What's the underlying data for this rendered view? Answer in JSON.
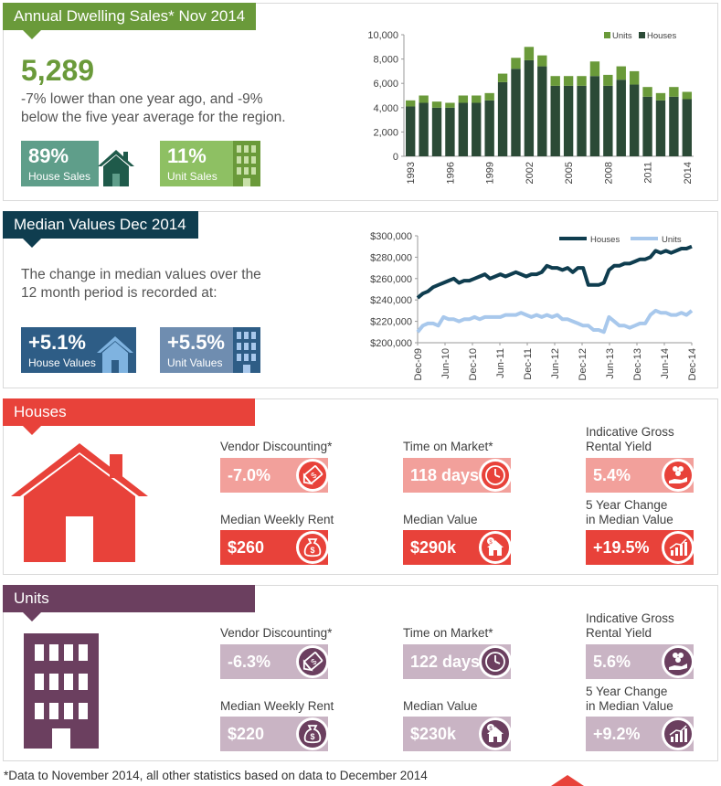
{
  "colors": {
    "green": "#6a9a3a",
    "navy": "#0f3d4f",
    "red": "#e8423a",
    "pink": "#f2a09b",
    "purple": "#6b3f5f",
    "lilac": "#c9b4c4",
    "houses_dark": "#2b4a36",
    "units_green": "#6a9a3a",
    "line_houses": "#0f3d4f",
    "line_units": "#a8c8ec"
  },
  "sales": {
    "title": "Annual Dwelling Sales* Nov 2014",
    "value": "5,289",
    "desc_line1": "-7% lower than one year ago, and -9%",
    "desc_line2": "below the five year average for the region.",
    "house_pct": "89%",
    "house_label": "House Sales",
    "unit_pct": "11%",
    "unit_label": "Unit Sales",
    "house_icon": "house-icon",
    "unit_icon": "building-icon"
  },
  "median": {
    "title": "Median Values Dec 2014",
    "desc_line1": "The change in median values over the",
    "desc_line2": "12 month period is  recorded at:",
    "house_pct": "+5.1%",
    "house_label": "House Values",
    "unit_pct": "+5.5%",
    "unit_label": "Unit Values"
  },
  "houses": {
    "title": "Houses",
    "vendor_label": "Vendor Discounting*",
    "vendor_value": "-7.0%",
    "vendor_icon": "price-tag-icon",
    "time_label": "Time on Market*",
    "time_value": "118 days",
    "time_icon": "clock-icon",
    "yield_label_1": "Indicative Gross",
    "yield_label_2": "Rental Yield",
    "yield_value": "5.4%",
    "yield_icon": "hand-coins-icon",
    "rent_label": "Median Weekly Rent",
    "rent_value": "$260",
    "rent_icon": "money-bag-icon",
    "median_label": "Median Value",
    "median_value": "$290k",
    "median_icon": "house-dollar-icon",
    "change_label_1": "5 Year Change",
    "change_label_2": "in Median Value",
    "change_value": "+19.5%",
    "change_icon": "bar-growth-icon"
  },
  "units": {
    "title": "Units",
    "vendor_label": "Vendor Discounting*",
    "vendor_value": "-6.3%",
    "time_label": "Time on Market*",
    "time_value": "122 days",
    "yield_label_1": "Indicative Gross",
    "yield_label_2": "Rental Yield",
    "yield_value": "5.6%",
    "rent_label": "Median Weekly Rent",
    "rent_value": "$220",
    "median_label": "Median Value",
    "median_value": "$230k",
    "change_label_1": "5 Year Change",
    "change_label_2": "in Median Value",
    "change_value": "+9.2%"
  },
  "footnote": "*Data to November 2014, all other statistics based on data to December 2014",
  "chart_data": [
    {
      "type": "bar",
      "stacked": true,
      "categories": [
        "1993",
        "1994",
        "1995",
        "1996",
        "1997",
        "1998",
        "1999",
        "2000",
        "2001",
        "2002",
        "2003",
        "2004",
        "2005",
        "2006",
        "2007",
        "2008",
        "2009",
        "2010",
        "2011",
        "2012",
        "2013",
        "2014"
      ],
      "tick_labels": [
        "1993",
        "1996",
        "1999",
        "2002",
        "2005",
        "2008",
        "2011",
        "2014"
      ],
      "series": [
        {
          "name": "Houses",
          "values": [
            4100,
            4400,
            4000,
            4000,
            4400,
            4400,
            4600,
            6100,
            7200,
            7900,
            7400,
            5800,
            5800,
            5800,
            6600,
            5800,
            6300,
            5900,
            4900,
            4600,
            4900,
            4700
          ]
        },
        {
          "name": "Units",
          "values": [
            500,
            600,
            500,
            400,
            600,
            600,
            600,
            700,
            900,
            1100,
            900,
            800,
            800,
            800,
            1200,
            900,
            1100,
            1100,
            800,
            600,
            800,
            600
          ]
        }
      ],
      "ylim": [
        0,
        10000
      ],
      "yticks": [
        "0",
        "2,000",
        "4,000",
        "6,000",
        "8,000",
        "10,000"
      ],
      "legend": "top-right",
      "grid": false
    },
    {
      "type": "line",
      "x_tick_labels": [
        "Dec-09",
        "Jun-10",
        "Dec-10",
        "Jun-11",
        "Dec-11",
        "Jun-12",
        "Dec-12",
        "Jun-13",
        "Dec-13",
        "Jun-14",
        "Dec-14"
      ],
      "series": [
        {
          "name": "Houses",
          "values": [
            242000,
            246000,
            248000,
            252000,
            254000,
            256000,
            258000,
            260000,
            256000,
            258000,
            258000,
            260000,
            262000,
            264000,
            260000,
            262000,
            264000,
            262000,
            264000,
            266000,
            264000,
            262000,
            264000,
            264000,
            266000,
            272000,
            270000,
            270000,
            268000,
            270000,
            266000,
            270000,
            270000,
            254000,
            254000,
            254000,
            256000,
            268000,
            272000,
            272000,
            274000,
            274000,
            276000,
            278000,
            278000,
            280000,
            286000,
            284000,
            286000,
            284000,
            286000,
            288000,
            288000,
            290000
          ]
        },
        {
          "name": "Units",
          "values": [
            210000,
            216000,
            218000,
            218000,
            216000,
            224000,
            222000,
            222000,
            220000,
            222000,
            222000,
            224000,
            222000,
            224000,
            224000,
            224000,
            224000,
            226000,
            226000,
            226000,
            228000,
            226000,
            224000,
            226000,
            224000,
            226000,
            224000,
            226000,
            222000,
            222000,
            220000,
            218000,
            216000,
            216000,
            212000,
            212000,
            210000,
            224000,
            220000,
            216000,
            216000,
            214000,
            216000,
            218000,
            218000,
            226000,
            230000,
            228000,
            228000,
            226000,
            226000,
            228000,
            226000,
            230000
          ]
        }
      ],
      "ylim": [
        200000,
        300000
      ],
      "yticks": [
        "$200,000",
        "$220,000",
        "$240,000",
        "$260,000",
        "$280,000",
        "$300,000"
      ],
      "legend": "top-right",
      "grid": false
    }
  ]
}
